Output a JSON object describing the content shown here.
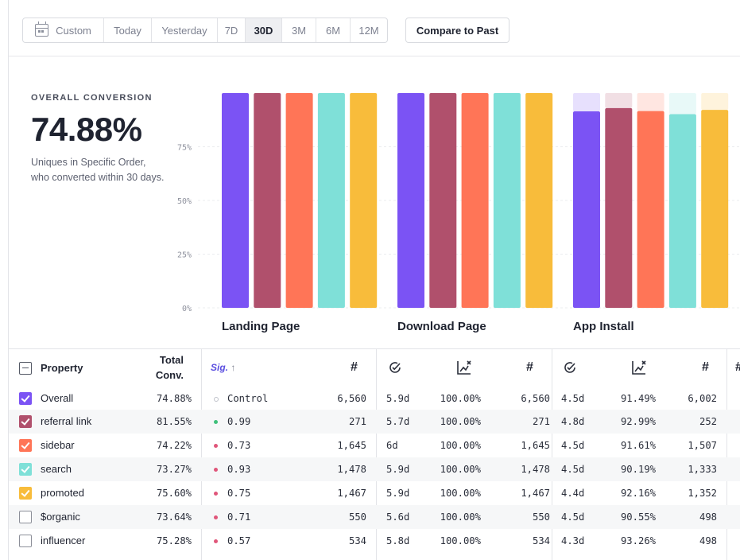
{
  "toolbar": {
    "date_tabs": [
      "Custom",
      "Today",
      "Yesterday",
      "7D",
      "30D",
      "3M",
      "6M",
      "12M"
    ],
    "active_tab": "30D",
    "compare_label": "Compare to Past"
  },
  "overall": {
    "label": "OVERALL CONVERSION",
    "value": "74.88%",
    "description": "Uniques in Specific Order, who converted within 30 days."
  },
  "chart_data": {
    "type": "bar",
    "categories": [
      "Landing Page",
      "Download Page",
      "App Install"
    ],
    "y_ticks": [
      "0%",
      "25%",
      "50%",
      "75%"
    ],
    "ylim": [
      0,
      100
    ],
    "series": [
      {
        "name": "Overall",
        "color": "#7b53f4",
        "values": [
          100,
          100,
          91.49
        ]
      },
      {
        "name": "referral link",
        "color": "#b0506c",
        "values": [
          100,
          100,
          92.99
        ]
      },
      {
        "name": "sidebar",
        "color": "#ff7557",
        "values": [
          100,
          100,
          91.61
        ]
      },
      {
        "name": "search",
        "color": "#7fe0d8",
        "values": [
          100,
          100,
          90.19
        ]
      },
      {
        "name": "promoted",
        "color": "#f8bc3b",
        "values": [
          100,
          100,
          92.16
        ]
      }
    ]
  },
  "table": {
    "headers": {
      "property": "Property",
      "total_conv_1": "Total",
      "total_conv_2": "Conv.",
      "sig": "Sig.",
      "hash": "#"
    },
    "rows": [
      {
        "name": "Overall",
        "checked": true,
        "color": "#7b53f4",
        "conv": "74.88%",
        "dot": "hollow",
        "sig": "Control",
        "n1": "6,560",
        "t2": "5.9d",
        "p2": "100.00%",
        "n2": "6,560",
        "t3": "4.5d",
        "p3": "91.49%",
        "n3": "6,002"
      },
      {
        "name": "referral link",
        "checked": true,
        "color": "#b0506c",
        "conv": "81.55%",
        "dot": "#3ec07a",
        "sig": "0.99",
        "n1": "271",
        "t2": "5.7d",
        "p2": "100.00%",
        "n2": "271",
        "t3": "4.8d",
        "p3": "92.99%",
        "n3": "252"
      },
      {
        "name": "sidebar",
        "checked": true,
        "color": "#ff7557",
        "conv": "74.22%",
        "dot": "#e0567a",
        "sig": "0.73",
        "n1": "1,645",
        "t2": "6d",
        "p2": "100.00%",
        "n2": "1,645",
        "t3": "4.5d",
        "p3": "91.61%",
        "n3": "1,507"
      },
      {
        "name": "search",
        "checked": true,
        "color": "#7fe0d8",
        "conv": "73.27%",
        "dot": "#e0567a",
        "sig": "0.93",
        "n1": "1,478",
        "t2": "5.9d",
        "p2": "100.00%",
        "n2": "1,478",
        "t3": "4.5d",
        "p3": "90.19%",
        "n3": "1,333"
      },
      {
        "name": "promoted",
        "checked": true,
        "color": "#f8bc3b",
        "conv": "75.60%",
        "dot": "#e0567a",
        "sig": "0.75",
        "n1": "1,467",
        "t2": "5.9d",
        "p2": "100.00%",
        "n2": "1,467",
        "t3": "4.4d",
        "p3": "92.16%",
        "n3": "1,352"
      },
      {
        "name": "$organic",
        "checked": false,
        "color": "",
        "conv": "73.64%",
        "dot": "#e0567a",
        "sig": "0.71",
        "n1": "550",
        "t2": "5.6d",
        "p2": "100.00%",
        "n2": "550",
        "t3": "4.5d",
        "p3": "90.55%",
        "n3": "498"
      },
      {
        "name": "influencer",
        "checked": false,
        "color": "",
        "conv": "75.28%",
        "dot": "#e0567a",
        "sig": "0.57",
        "n1": "534",
        "t2": "5.8d",
        "p2": "100.00%",
        "n2": "534",
        "t3": "4.3d",
        "p3": "93.26%",
        "n3": "498"
      }
    ]
  }
}
